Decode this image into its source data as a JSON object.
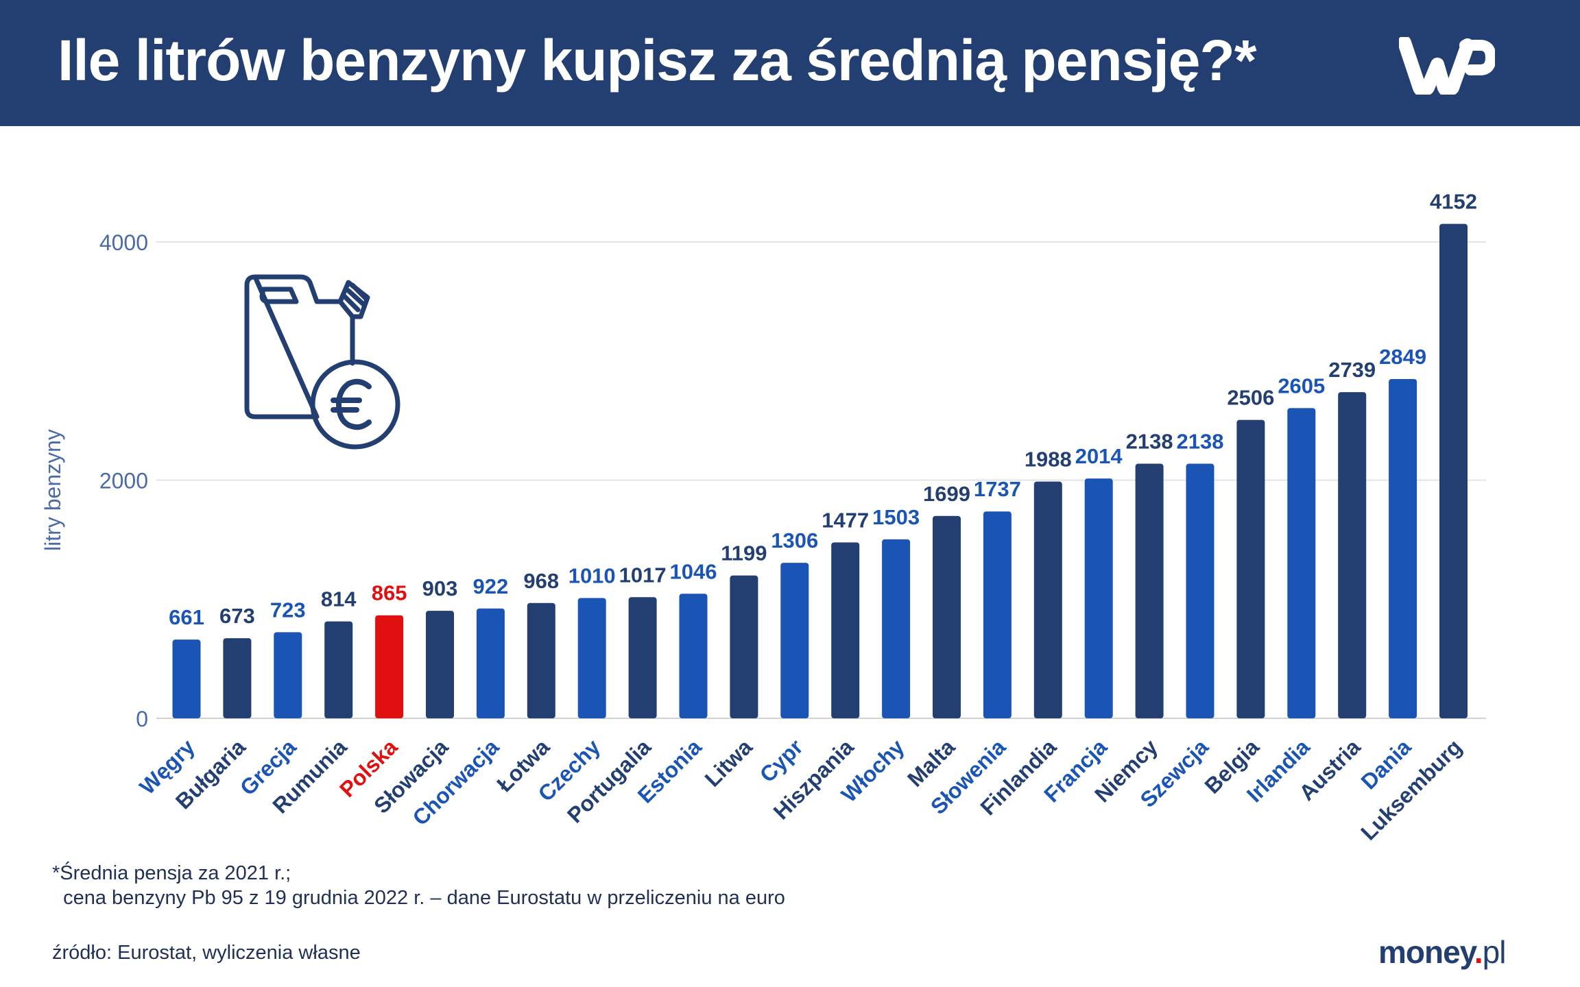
{
  "header": {
    "title": "Ile litrów benzyny kupisz za średnią pensję?*",
    "logo": "WP"
  },
  "colors": {
    "header": "#233f72",
    "dark": "#233f72",
    "blue": "#1a54b4",
    "highlight": "#e01010",
    "axis_text": "#4a6aa8",
    "grid": "#e3e3e3"
  },
  "icon": "fuel-canister-euro-icon",
  "chart_data": {
    "type": "bar",
    "title": "",
    "xlabel": "",
    "ylabel": "litry benzyny",
    "ylim": [
      0,
      4200
    ],
    "yticks": [
      0,
      2000,
      4000
    ],
    "grid": true,
    "categories": [
      "Węgry",
      "Bułgaria",
      "Grecja",
      "Rumunia",
      "Polska",
      "Słowacja",
      "Chorwacja",
      "Łotwa",
      "Czechy",
      "Portugalia",
      "Estonia",
      "Litwa",
      "Cypr",
      "Hiszpania",
      "Włochy",
      "Malta",
      "Słowenia",
      "Finlandia",
      "Francja",
      "Niemcy",
      "Szewcja",
      "Belgia",
      "Irlandia",
      "Austria",
      "Dania",
      "Luksemburg"
    ],
    "values": [
      661,
      673,
      723,
      814,
      865,
      903,
      922,
      968,
      1010,
      1017,
      1046,
      1199,
      1306,
      1477,
      1503,
      1699,
      1737,
      1988,
      2014,
      2138,
      2138,
      2506,
      2605,
      2739,
      2849,
      4152
    ],
    "bar_colors": [
      "blue",
      "dark",
      "blue",
      "dark",
      "highlight",
      "dark",
      "blue",
      "dark",
      "blue",
      "dark",
      "blue",
      "dark",
      "blue",
      "dark",
      "blue",
      "dark",
      "blue",
      "dark",
      "blue",
      "dark",
      "blue",
      "dark",
      "blue",
      "dark",
      "blue",
      "dark"
    ]
  },
  "footer": {
    "note_line1": "*Średnia pensja za 2021 r.;",
    "note_line2": "  cena benzyny Pb 95 z 19 grudnia 2022 r. – dane Eurostatu w przeliczeniu na euro",
    "source": "źródło: Eurostat, wyliczenia własne",
    "brand": {
      "name": "money",
      "dot": ".",
      "tld": "pl"
    }
  }
}
